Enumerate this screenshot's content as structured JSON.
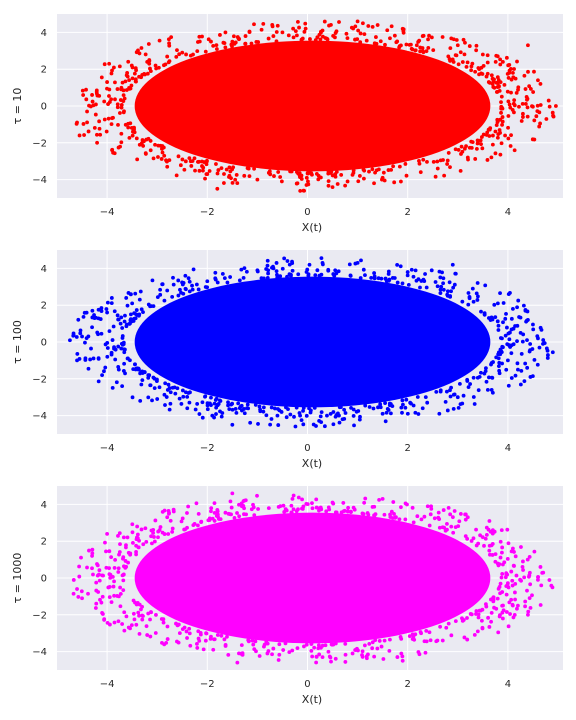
{
  "chart_data": [
    {
      "type": "scatter",
      "ylabel": "τ = 10",
      "xlabel": "X(t)",
      "xlim": [
        -5,
        5.1
      ],
      "ylim": [
        -5,
        5
      ],
      "xticks": [
        -4,
        -2,
        0,
        2,
        4
      ],
      "yticks": [
        -4,
        -2,
        0,
        2,
        4
      ],
      "xtick_labels": [
        "−4",
        "−2",
        "0",
        "2",
        "4"
      ],
      "ytick_labels": [
        "−4",
        "−2",
        "0",
        "2",
        "4"
      ],
      "grid": true,
      "color": "#ff0000",
      "series": [
        {
          "points": [
            [
              -4.6,
              -0.9
            ],
            [
              -4.55,
              -1.6
            ],
            [
              -4.4,
              -0.3
            ],
            [
              -4.3,
              0.6
            ],
            [
              -4.2,
              -2.0
            ],
            [
              -4.0,
              1.3
            ],
            [
              -3.9,
              -2.4
            ],
            [
              -3.6,
              1.8
            ],
            [
              -3.4,
              -2.9
            ],
            [
              -3.2,
              2.4
            ],
            [
              -2.8,
              -3.3
            ],
            [
              -2.5,
              2.9
            ],
            [
              -2.0,
              -3.7
            ],
            [
              -1.8,
              -4.5
            ],
            [
              -1.5,
              3.5
            ],
            [
              -1.0,
              -4.0
            ],
            [
              -0.5,
              4.0
            ],
            [
              -0.2,
              -4.2
            ],
            [
              0.3,
              4.1
            ],
            [
              0.8,
              -4.1
            ],
            [
              1.0,
              4.6
            ],
            [
              1.5,
              -3.9
            ],
            [
              1.4,
              4.4
            ],
            [
              1.9,
              4.2
            ],
            [
              2.3,
              3.8
            ],
            [
              2.6,
              -3.4
            ],
            [
              3.0,
              3.3
            ],
            [
              3.2,
              -2.8
            ],
            [
              3.5,
              2.8
            ],
            [
              3.7,
              -2.1
            ],
            [
              3.9,
              2.4
            ],
            [
              4.1,
              1.8
            ],
            [
              4.3,
              -0.6
            ],
            [
              4.4,
              3.3
            ],
            [
              4.6,
              1.4
            ],
            [
              4.65,
              1.2
            ]
          ]
        }
      ]
    },
    {
      "type": "scatter",
      "ylabel": "τ = 100",
      "xlabel": "X(t)",
      "xlim": [
        -5,
        5.1
      ],
      "ylim": [
        -5,
        5
      ],
      "xticks": [
        -4,
        -2,
        0,
        2,
        4
      ],
      "yticks": [
        -4,
        -2,
        0,
        2,
        4
      ],
      "xtick_labels": [
        "−4",
        "−2",
        "0",
        "2",
        "4"
      ],
      "ytick_labels": [
        "−4",
        "−2",
        "0",
        "2",
        "4"
      ],
      "grid": true,
      "color": "#0000ff",
      "series": [
        {
          "points": [
            [
              -4.6,
              -1.0
            ],
            [
              -4.5,
              0.3
            ],
            [
              -4.3,
              0.8
            ],
            [
              -4.1,
              -1.8
            ],
            [
              -4.0,
              1.6
            ],
            [
              -3.7,
              -2.4
            ],
            [
              -3.5,
              2.1
            ],
            [
              -3.0,
              -3.1
            ],
            [
              -2.8,
              2.8
            ],
            [
              -2.4,
              -3.6
            ],
            [
              -2.0,
              3.3
            ],
            [
              -1.9,
              -4.0
            ],
            [
              -1.5,
              -4.5
            ],
            [
              -1.0,
              3.9
            ],
            [
              -0.6,
              -4.0
            ],
            [
              -0.4,
              4.4
            ],
            [
              0.3,
              4.3
            ],
            [
              0.7,
              -4.2
            ],
            [
              1.0,
              4.3
            ],
            [
              1.5,
              -3.9
            ],
            [
              2.0,
              3.8
            ],
            [
              2.3,
              -3.6
            ],
            [
              2.9,
              4.2
            ],
            [
              3.0,
              -3.0
            ],
            [
              3.3,
              2.9
            ],
            [
              3.6,
              -2.6
            ],
            [
              3.8,
              2.1
            ],
            [
              4.0,
              -1.0
            ],
            [
              4.1,
              1.8
            ],
            [
              4.2,
              -1.5
            ],
            [
              4.4,
              1.2
            ],
            [
              4.45,
              -1.9
            ],
            [
              4.6,
              0.2
            ],
            [
              4.7,
              -0.1
            ]
          ]
        }
      ]
    },
    {
      "type": "scatter",
      "ylabel": "τ = 1000",
      "xlabel": "X(t)",
      "xlim": [
        -5,
        5.1
      ],
      "ylim": [
        -5,
        5
      ],
      "xticks": [
        -4,
        -2,
        0,
        2,
        4
      ],
      "yticks": [
        -4,
        -2,
        0,
        2,
        4
      ],
      "xtick_labels": [
        "−4",
        "−2",
        "0",
        "2",
        "4"
      ],
      "ytick_labels": [
        "−4",
        "−2",
        "0",
        "2",
        "4"
      ],
      "grid": true,
      "color": "#ff00ff",
      "series": [
        {
          "points": [
            [
              -4.6,
              -0.6
            ],
            [
              -4.5,
              -1.1
            ],
            [
              -4.3,
              1.2
            ],
            [
              -4.1,
              -1.9
            ],
            [
              -4.0,
              2.4
            ],
            [
              -3.7,
              -2.5
            ],
            [
              -3.4,
              2.8
            ],
            [
              -3.2,
              -3.1
            ],
            [
              -2.8,
              3.3
            ],
            [
              -2.2,
              -3.8
            ],
            [
              -1.8,
              3.7
            ],
            [
              -1.4,
              -4.6
            ],
            [
              -1.5,
              4.6
            ],
            [
              -0.8,
              -4.1
            ],
            [
              -0.3,
              4.3
            ],
            [
              0.3,
              -4.3
            ],
            [
              0.5,
              4.1
            ],
            [
              0.9,
              -4.1
            ],
            [
              1.5,
              4.3
            ],
            [
              1.9,
              -4.5
            ],
            [
              2.4,
              3.9
            ],
            [
              2.7,
              -3.4
            ],
            [
              3.2,
              3.3
            ],
            [
              3.4,
              -2.9
            ],
            [
              3.7,
              2.6
            ],
            [
              3.9,
              -2.2
            ],
            [
              4.1,
              1.6
            ],
            [
              4.2,
              -1.5
            ],
            [
              4.3,
              0.9
            ],
            [
              4.4,
              -2.0
            ],
            [
              4.6,
              -0.1
            ],
            [
              4.65,
              0.6
            ]
          ]
        }
      ]
    }
  ]
}
